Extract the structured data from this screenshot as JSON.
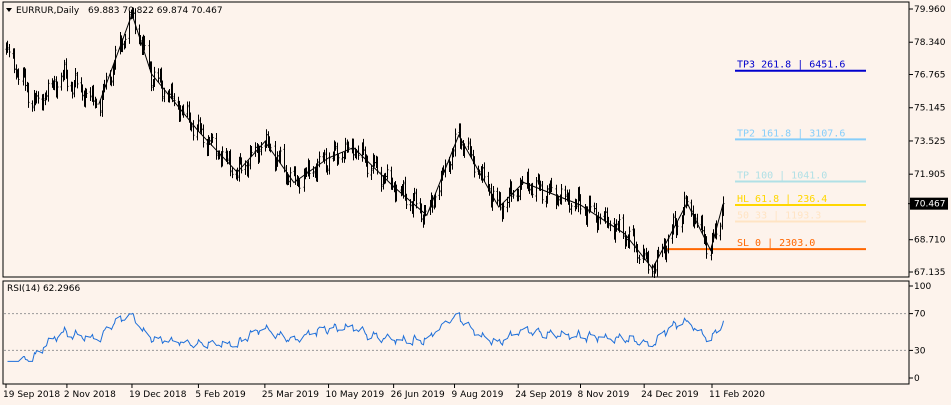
{
  "chart_data": [
    {
      "type": "candlestick",
      "header": {
        "symbol": "EURRUR,Daily",
        "ohlc": "69.883 70.822 69.874 70.467"
      },
      "current_price": 70.467,
      "current_price_label": "70.467",
      "price_axis_ticks": [
        "79.960",
        "78.340",
        "76.765",
        "75.145",
        "73.525",
        "71.905",
        "68.710",
        "67.135"
      ],
      "price_axis_values": [
        79.96,
        78.34,
        76.765,
        75.145,
        73.525,
        71.905,
        68.71,
        67.135
      ],
      "date_axis_ticks": [
        "19 Sep 2018",
        "2 Nov 2018",
        "19 Dec 2018",
        "5 Feb 2019",
        "25 Mar 2019",
        "10 May 2019",
        "26 Jun 2019",
        "9 Aug 2019",
        "24 Sep 2019",
        "8 Nov 2019",
        "24 Dec 2019",
        "11 Feb 2020"
      ],
      "price_path_anchors": [
        {
          "date": "2018-09-19",
          "price": 78.0
        },
        {
          "date": "2018-10-10",
          "price": 75.3
        },
        {
          "date": "2018-10-30",
          "price": 76.7
        },
        {
          "date": "2018-11-25",
          "price": 75.3
        },
        {
          "date": "2018-12-19",
          "price": 79.7
        },
        {
          "date": "2019-01-02",
          "price": 76.8
        },
        {
          "date": "2019-02-05",
          "price": 74.0
        },
        {
          "date": "2019-03-05",
          "price": 72.0
        },
        {
          "date": "2019-03-25",
          "price": 73.5
        },
        {
          "date": "2019-04-15",
          "price": 71.5
        },
        {
          "date": "2019-05-10",
          "price": 72.7
        },
        {
          "date": "2019-05-28",
          "price": 73.2
        },
        {
          "date": "2019-06-26",
          "price": 71.3
        },
        {
          "date": "2019-07-20",
          "price": 69.9
        },
        {
          "date": "2019-08-12",
          "price": 73.8
        },
        {
          "date": "2019-09-10",
          "price": 70.3
        },
        {
          "date": "2019-09-28",
          "price": 71.5
        },
        {
          "date": "2019-11-08",
          "price": 70.4
        },
        {
          "date": "2019-12-10",
          "price": 69.0
        },
        {
          "date": "2019-12-30",
          "price": 67.3
        },
        {
          "date": "2020-01-24",
          "price": 70.5
        },
        {
          "date": "2020-02-10",
          "price": 68.2
        },
        {
          "date": "2020-02-19",
          "price": 70.467
        }
      ],
      "fibonacci_levels": [
        {
          "label": "TP3  261.8  |  6451.6",
          "price": 76.95,
          "color": "#0000cd"
        },
        {
          "label": "TP2  161.8  |  3107.6",
          "price": 73.6,
          "color": "#87cefa"
        },
        {
          "label": "TP   100    |  1041.0",
          "price": 71.55,
          "color": "#b0e0e6"
        },
        {
          "label": "HL   61.8   |  236.4",
          "price": 70.4,
          "color": "#ffd700"
        },
        {
          "label": "50   33     |  1193.3",
          "price": 69.6,
          "color": "#ffe4c4"
        },
        {
          "label": "SL   0      |  2303.0",
          "price": 68.25,
          "color": "#ff6600"
        }
      ]
    },
    {
      "type": "line",
      "title": "RSI(14) 62.2966",
      "y_axis_ticks": [
        "100",
        "70",
        "30",
        "0"
      ],
      "y_axis_values": [
        100,
        70,
        30,
        0
      ],
      "levels": [
        70,
        30
      ],
      "ylim": [
        0,
        100
      ],
      "last_value": 62.2966,
      "line_color": "#1e6fd9"
    }
  ]
}
